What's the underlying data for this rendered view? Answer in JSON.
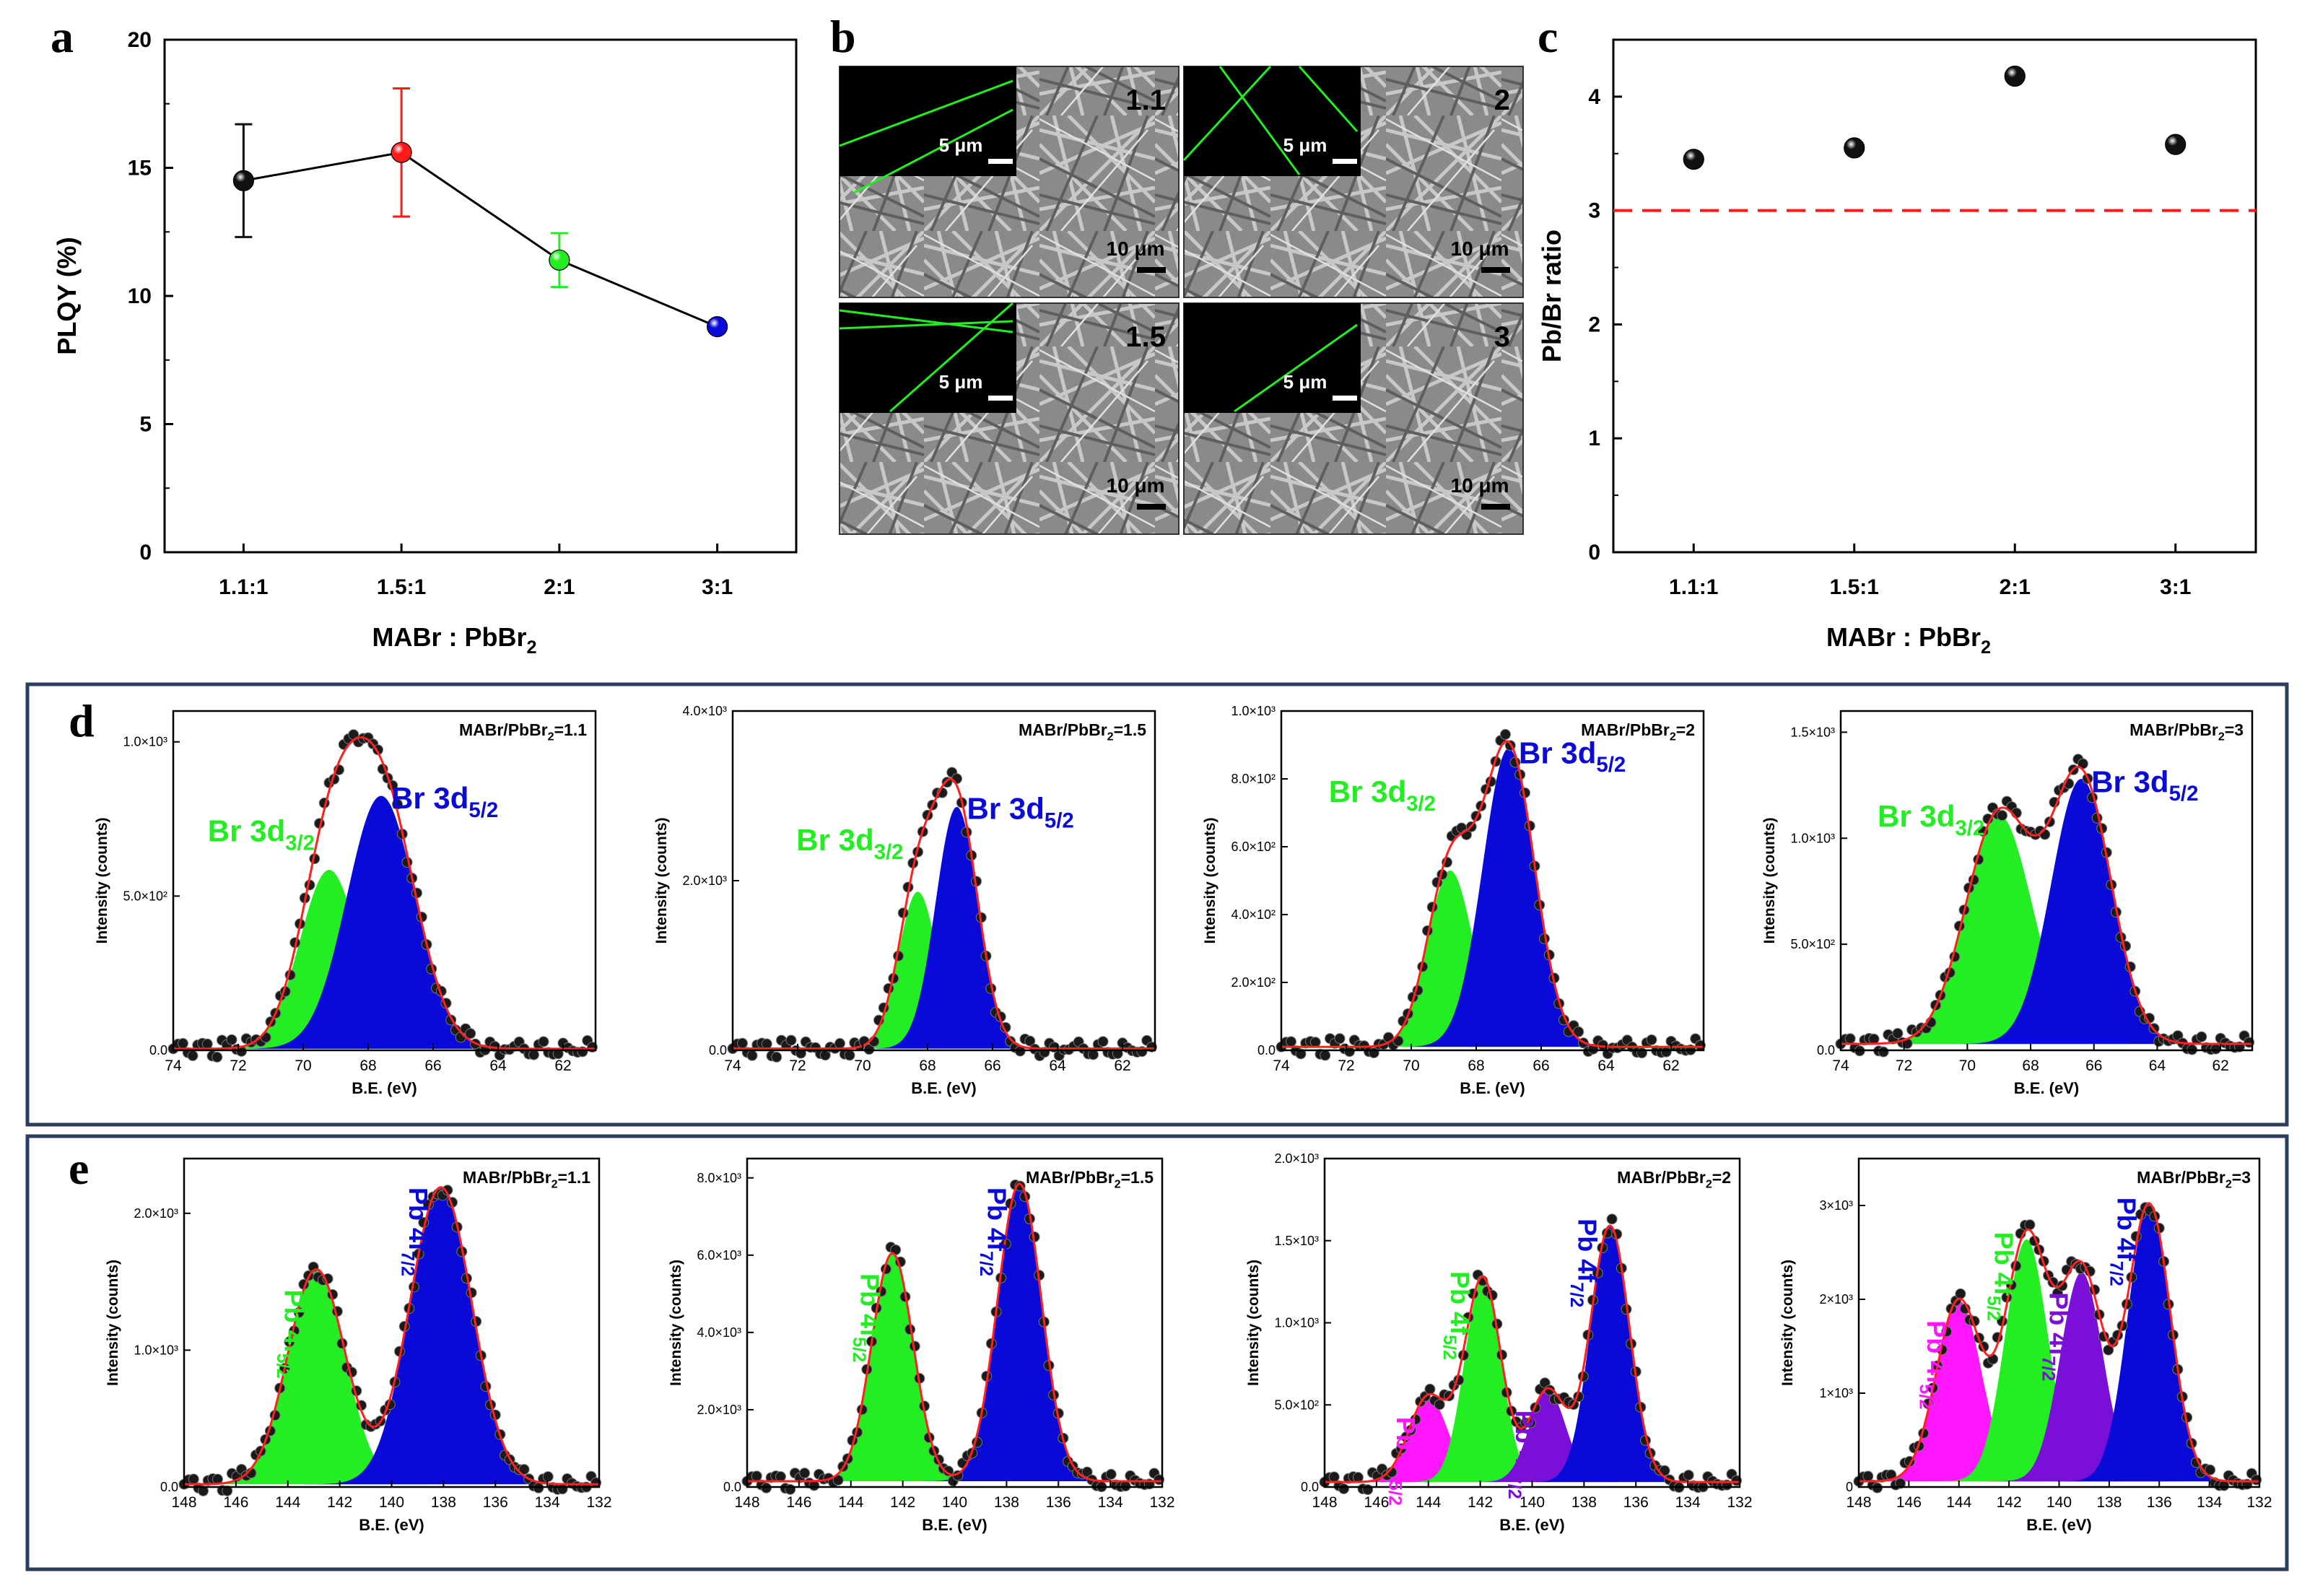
{
  "panel_letters": {
    "a": "a",
    "b": "b",
    "c": "c",
    "d": "d",
    "e": "e"
  },
  "colors": {
    "black": "#111111",
    "red": "#ff1a1a",
    "green": "#22ee22",
    "blue": "#0a0ad8",
    "violet": "#7a10d8",
    "magenta": "#ff18ff",
    "fitline": "#ff2020",
    "frame": "#2a3f5f"
  },
  "sem": {
    "scale_inset": "5 μm",
    "scale_main": "10 μm",
    "images": [
      {
        "label": "1.1"
      },
      {
        "label": "2"
      },
      {
        "label": "1.5"
      },
      {
        "label": "3"
      }
    ]
  },
  "chart_data": [
    {
      "id": "a",
      "type": "line",
      "title": "",
      "xlabel": "MABr : PbBr",
      "xlabel_sub": "2",
      "ylabel": "PLQY (%)",
      "categories": [
        "1.1:1",
        "1.5:1",
        "2:1",
        "3:1"
      ],
      "values": [
        14.5,
        15.6,
        11.4,
        8.8
      ],
      "errors": [
        2.2,
        2.5,
        1.05,
        0
      ],
      "point_colors": [
        "#111111",
        "#ff1a1a",
        "#22ee22",
        "#0a0ad8"
      ],
      "ylim": [
        0,
        20
      ],
      "yticks": [
        "0",
        "5",
        "10",
        "15",
        "20"
      ]
    },
    {
      "id": "c",
      "type": "scatter",
      "title": "",
      "xlabel": "MABr : PbBr",
      "xlabel_sub": "2",
      "ylabel": "Pb/Br ratio",
      "categories": [
        "1.1:1",
        "1.5:1",
        "2:1",
        "3:1"
      ],
      "values": [
        3.45,
        3.55,
        4.18,
        3.58
      ],
      "reference_line": 3,
      "ylim": [
        0,
        4.5
      ],
      "yticks": [
        "0",
        "1",
        "2",
        "3",
        "4"
      ]
    },
    {
      "id": "d1",
      "type": "area",
      "region": "Br 3d",
      "annotation": "MABr/PbBr",
      "annotation_sub": "2",
      "annotation_val": "=1.1",
      "xlabel": "B.E. (eV)",
      "ylabel": "Intensity (counts)",
      "xlim": [
        74,
        61
      ],
      "xticks": [
        "74",
        "72",
        "70",
        "68",
        "66",
        "64",
        "62"
      ],
      "xtickvals": [
        74,
        72,
        70,
        68,
        66,
        64,
        62
      ],
      "ylim": [
        0,
        1100
      ],
      "yticks": [
        "0.0",
        "5.0×10²",
        "1.0×10³"
      ],
      "ytickvals": [
        0,
        500,
        1000
      ],
      "peaks": [
        {
          "label": "Br 3d",
          "sub": "3/2",
          "center": 69.2,
          "amp": 580,
          "sigma": 0.9,
          "color": "#22ee22"
        },
        {
          "label": "Br 3d",
          "sub": "5/2",
          "center": 67.6,
          "amp": 820,
          "sigma": 1.05,
          "color": "#0a0ad8"
        }
      ],
      "baseline": 5
    },
    {
      "id": "d2",
      "type": "area",
      "region": "Br 3d",
      "annotation": "MABr/PbBr",
      "annotation_sub": "2",
      "annotation_val": "=1.5",
      "xlabel": "B.E. (eV)",
      "ylabel": "Intensity (counts)",
      "xlim": [
        74,
        61
      ],
      "xticks": [
        "74",
        "72",
        "70",
        "68",
        "66",
        "64",
        "62"
      ],
      "xtickvals": [
        74,
        72,
        70,
        68,
        66,
        64,
        62
      ],
      "ylim": [
        0,
        4000
      ],
      "yticks": [
        "0.0",
        "2.0×10³",
        "4.0×10³"
      ],
      "ytickvals": [
        0,
        2000,
        4000
      ],
      "peaks": [
        {
          "label": "Br 3d",
          "sub": "3/2",
          "center": 68.3,
          "amp": 1850,
          "sigma": 0.6,
          "color": "#22ee22"
        },
        {
          "label": "Br 3d",
          "sub": "5/2",
          "center": 67.1,
          "amp": 2850,
          "sigma": 0.65,
          "color": "#0a0ad8"
        }
      ],
      "baseline": 20
    },
    {
      "id": "d3",
      "type": "area",
      "region": "Br 3d",
      "annotation": "MABr/PbBr",
      "annotation_sub": "2",
      "annotation_val": "=2",
      "xlabel": "B.E. (eV)",
      "ylabel": "Intensity (counts)",
      "xlim": [
        74,
        61
      ],
      "xticks": [
        "74",
        "72",
        "70",
        "68",
        "66",
        "64",
        "62"
      ],
      "xtickvals": [
        74,
        72,
        70,
        68,
        66,
        64,
        62
      ],
      "ylim": [
        0,
        1000
      ],
      "yticks": [
        "0.0",
        "2.0×10²",
        "4.0×10²",
        "6.0×10²",
        "8.0×10²",
        "1.0×10³"
      ],
      "ytickvals": [
        0,
        200,
        400,
        600,
        800,
        1000
      ],
      "peaks": [
        {
          "label": "Br 3d",
          "sub": "3/2",
          "center": 68.8,
          "amp": 520,
          "sigma": 0.7,
          "color": "#22ee22"
        },
        {
          "label": "Br 3d",
          "sub": "5/2",
          "center": 67.0,
          "amp": 880,
          "sigma": 0.8,
          "color": "#0a0ad8"
        }
      ],
      "baseline": 10
    },
    {
      "id": "d4",
      "type": "area",
      "region": "Br 3d",
      "annotation": "MABr/PbBr",
      "annotation_sub": "2",
      "annotation_val": "=3",
      "xlabel": "B.E. (eV)",
      "ylabel": "Intensity (counts)",
      "xlim": [
        74,
        61
      ],
      "xticks": [
        "74",
        "72",
        "70",
        "68",
        "66",
        "64",
        "62"
      ],
      "xtickvals": [
        74,
        72,
        70,
        68,
        66,
        64,
        62
      ],
      "ylim": [
        0,
        1600
      ],
      "yticks": [
        "0.0",
        "5.0×10²",
        "1.0×10³",
        "1.5×10³"
      ],
      "ytickvals": [
        0,
        500,
        1000,
        1500
      ],
      "peaks": [
        {
          "label": "Br 3d",
          "sub": "3/2",
          "center": 69.0,
          "amp": 1080,
          "sigma": 1.05,
          "color": "#22ee22"
        },
        {
          "label": "Br 3d",
          "sub": "5/2",
          "center": 66.4,
          "amp": 1250,
          "sigma": 0.95,
          "color": "#0a0ad8"
        }
      ],
      "baseline": 30
    },
    {
      "id": "e1",
      "type": "area",
      "region": "Pb 4f",
      "annotation": "MABr/PbBr",
      "annotation_sub": "2",
      "annotation_val": "=1.1",
      "xlabel": "B.E. (eV)",
      "ylabel": "Intensity (counts)",
      "xlim": [
        148,
        132
      ],
      "xticks": [
        "148",
        "146",
        "144",
        "142",
        "140",
        "138",
        "136",
        "134",
        "132"
      ],
      "xtickvals": [
        148,
        146,
        144,
        142,
        140,
        138,
        136,
        134,
        132
      ],
      "ylim": [
        0,
        2400
      ],
      "yticks": [
        "0.0",
        "1.0×10³",
        "2.0×10³"
      ],
      "ytickvals": [
        0,
        1000,
        2000
      ],
      "peaks": [
        {
          "label": "Pb 4f",
          "sub": "5/2",
          "center": 142.9,
          "amp": 1570,
          "sigma": 1.1,
          "color": "#22ee22"
        },
        {
          "label": "Pb 4f",
          "sub": "7/2",
          "center": 138.1,
          "amp": 2170,
          "sigma": 1.2,
          "color": "#0a0ad8"
        }
      ],
      "baseline": 20
    },
    {
      "id": "e2",
      "type": "area",
      "region": "Pb 4f",
      "annotation": "MABr/PbBr",
      "annotation_sub": "2",
      "annotation_val": "=1.5",
      "xlabel": "B.E. (eV)",
      "ylabel": "Intensity (counts)",
      "xlim": [
        148,
        132
      ],
      "xticks": [
        "148",
        "146",
        "144",
        "142",
        "140",
        "138",
        "136",
        "134",
        "132"
      ],
      "xtickvals": [
        148,
        146,
        144,
        142,
        140,
        138,
        136,
        134,
        132
      ],
      "ylim": [
        0,
        8500
      ],
      "yticks": [
        "0.0",
        "2.0×10³",
        "4.0×10³",
        "6.0×10³",
        "8.0×10³"
      ],
      "ytickvals": [
        0,
        2000,
        4000,
        6000,
        8000
      ],
      "peaks": [
        {
          "label": "Pb 4f",
          "sub": "5/2",
          "center": 142.4,
          "amp": 5900,
          "sigma": 0.8,
          "color": "#22ee22"
        },
        {
          "label": "Pb 4f",
          "sub": "7/2",
          "center": 137.5,
          "amp": 7700,
          "sigma": 0.85,
          "color": "#0a0ad8"
        }
      ],
      "baseline": 150
    },
    {
      "id": "e3",
      "type": "area",
      "region": "Pb 4f",
      "annotation": "MABr/PbBr",
      "annotation_sub": "2",
      "annotation_val": "=2",
      "xlabel": "B.E. (eV)",
      "ylabel": "Intensity (counts)",
      "xlim": [
        148,
        132
      ],
      "xticks": [
        "148",
        "146",
        "144",
        "142",
        "140",
        "138",
        "136",
        "134",
        "132"
      ],
      "xtickvals": [
        148,
        146,
        144,
        142,
        140,
        138,
        136,
        134,
        132
      ],
      "ylim": [
        0,
        2000
      ],
      "yticks": [
        "0.0",
        "5.0×10²",
        "1.0×10³",
        "1.5×10³",
        "2.0×10³"
      ],
      "ytickvals": [
        0,
        500,
        1000,
        1500,
        2000
      ],
      "peaks": [
        {
          "label": "Pb 4f",
          "sub": "5/2",
          "center": 144.0,
          "amp": 520,
          "sigma": 0.75,
          "color": "#ff18ff"
        },
        {
          "label": "Pb 4f",
          "sub": "5/2",
          "center": 141.9,
          "amp": 1240,
          "sigma": 0.7,
          "color": "#22ee22"
        },
        {
          "label": "Pb 4f",
          "sub": "7/2",
          "center": 139.4,
          "amp": 560,
          "sigma": 0.7,
          "color": "#7a10d8"
        },
        {
          "label": "Pb 4f",
          "sub": "7/2",
          "center": 137.0,
          "amp": 1560,
          "sigma": 0.75,
          "color": "#0a0ad8"
        }
      ],
      "baseline": 30
    },
    {
      "id": "e4",
      "type": "area",
      "region": "Pb 4f",
      "annotation": "MABr/PbBr",
      "annotation_sub": "2",
      "annotation_val": "=3",
      "xlabel": "B.E. (eV)",
      "ylabel": "Intensity (counts)",
      "xlim": [
        148,
        132
      ],
      "xticks": [
        "148",
        "146",
        "144",
        "142",
        "140",
        "138",
        "136",
        "134",
        "132"
      ],
      "xtickvals": [
        148,
        146,
        144,
        142,
        140,
        138,
        136,
        134,
        132
      ],
      "ylim": [
        0,
        3500
      ],
      "yticks": [
        "0",
        "1×10³",
        "2×10³",
        "3×10³"
      ],
      "ytickvals": [
        0,
        1000,
        2000,
        3000
      ],
      "peaks": [
        {
          "label": "Pb 4f",
          "sub": "5/2",
          "center": 144.0,
          "amp": 1930,
          "sigma": 0.9,
          "color": "#ff18ff"
        },
        {
          "label": "Pb 4f",
          "sub": "5/2",
          "center": 141.3,
          "amp": 2580,
          "sigma": 0.85,
          "color": "#22ee22"
        },
        {
          "label": "Pb 4f",
          "sub": "7/2",
          "center": 139.1,
          "amp": 2230,
          "sigma": 0.85,
          "color": "#7a10d8"
        },
        {
          "label": "Pb 4f",
          "sub": "7/2",
          "center": 136.4,
          "amp": 2950,
          "sigma": 0.85,
          "color": "#0a0ad8"
        }
      ],
      "baseline": 60
    }
  ]
}
